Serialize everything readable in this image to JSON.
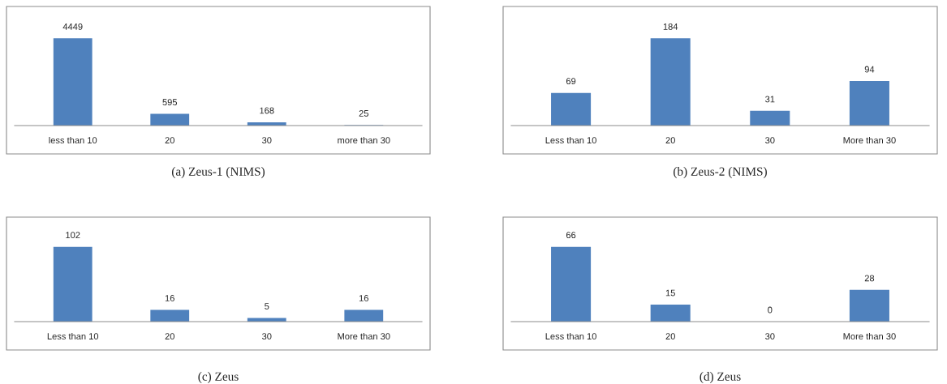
{
  "chart_data": [
    {
      "type": "bar",
      "title": "(a) Zeus-1 (NIMS)",
      "categories": [
        "less than 10",
        "20",
        "30",
        "more than 30"
      ],
      "values": [
        4449,
        595,
        168,
        25
      ],
      "color": "#4f81bd",
      "data_labels": true
    },
    {
      "type": "bar",
      "title": "(b) Zeus-2 (NIMS)",
      "categories": [
        "Less than 10",
        "20",
        "30",
        "More than 30"
      ],
      "values": [
        69,
        184,
        31,
        94
      ],
      "color": "#4f81bd",
      "data_labels": true
    },
    {
      "type": "bar",
      "title": "(c) Zeus",
      "categories": [
        "Less than 10",
        "20",
        "30",
        "More than 30"
      ],
      "values": [
        102,
        16,
        5,
        16
      ],
      "color": "#4f81bd",
      "data_labels": true
    },
    {
      "type": "bar",
      "title": "(d) Zeus",
      "categories": [
        "Less than 10",
        "20",
        "30",
        "More than 30"
      ],
      "values": [
        66,
        15,
        0,
        28
      ],
      "color": "#4f81bd",
      "data_labels": true
    }
  ]
}
